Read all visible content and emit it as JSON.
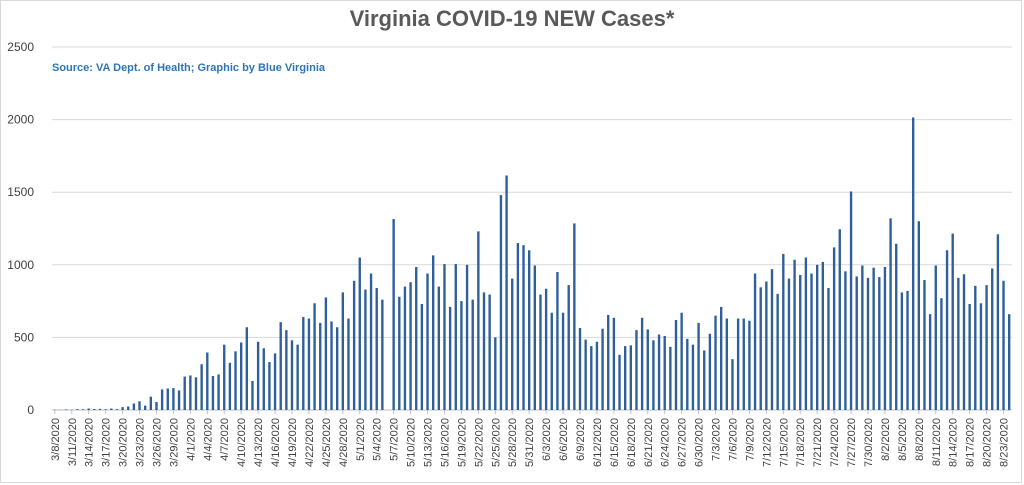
{
  "chart_data": {
    "type": "bar",
    "title": "Virginia COVID-19 NEW Cases*",
    "annotation": "Source: VA Dept. of Health; Graphic by Blue Virginia",
    "start_date": "3/8/2020",
    "tick_labels": [
      "3/8/2020",
      "3/11/2020",
      "3/14/2020",
      "3/17/2020",
      "3/20/2020",
      "3/23/2020",
      "3/26/2020",
      "3/29/2020",
      "4/1/2020",
      "4/4/2020",
      "4/7/2020",
      "4/10/2020",
      "4/13/2020",
      "4/16/2020",
      "4/19/2020",
      "4/22/2020",
      "4/25/2020",
      "4/28/2020",
      "5/1/2020",
      "5/4/2020",
      "5/7/2020",
      "5/10/2020",
      "5/13/2020",
      "5/16/2020",
      "5/19/2020",
      "5/22/2020",
      "5/25/2020",
      "5/28/2020",
      "5/31/2020",
      "6/3/2020",
      "6/6/2020",
      "6/9/2020",
      "6/12/2020",
      "6/15/2020",
      "6/18/2020",
      "6/21/2020",
      "6/24/2020",
      "6/27/2020",
      "6/30/2020",
      "7/3/2020",
      "7/6/2020",
      "7/9/2020",
      "7/12/2020",
      "7/15/2020",
      "7/18/2020",
      "7/21/2020",
      "7/24/2020",
      "7/27/2020",
      "7/30/2020",
      "8/2/2020",
      "8/5/2020",
      "8/8/2020",
      "8/11/2020",
      "8/14/2020",
      "8/17/2020",
      "8/20/2020",
      "8/23/2020"
    ],
    "values": [
      2,
      1,
      4,
      2,
      6,
      5,
      10,
      7,
      8,
      5,
      10,
      6,
      20,
      24,
      45,
      60,
      30,
      92,
      55,
      142,
      148,
      151,
      135,
      230,
      238,
      225,
      315,
      396,
      234,
      245,
      450,
      325,
      404,
      465,
      570,
      200,
      470,
      425,
      330,
      390,
      605,
      550,
      480,
      450,
      640,
      630,
      735,
      600,
      775,
      610,
      570,
      810,
      630,
      890,
      1050,
      830,
      940,
      840,
      760,
      0,
      1315,
      780,
      850,
      880,
      985,
      730,
      940,
      1065,
      850,
      1005,
      710,
      1005,
      750,
      1000,
      760,
      1230,
      810,
      795,
      500,
      1480,
      1615,
      905,
      1150,
      1135,
      1100,
      995,
      795,
      835,
      670,
      950,
      670,
      860,
      1285,
      565,
      485,
      440,
      470,
      560,
      655,
      635,
      380,
      440,
      445,
      550,
      635,
      555,
      480,
      520,
      510,
      435,
      620,
      670,
      490,
      450,
      600,
      410,
      525,
      650,
      710,
      630,
      350,
      630,
      630,
      615,
      940,
      845,
      885,
      970,
      800,
      1075,
      905,
      1035,
      930,
      1050,
      940,
      1000,
      1020,
      840,
      1120,
      1245,
      955,
      1505,
      920,
      995,
      910,
      980,
      915,
      985,
      1320,
      1145,
      810,
      820,
      2015,
      1300,
      895,
      660,
      995,
      770,
      1100,
      1215,
      910,
      935,
      730,
      855,
      735,
      860,
      975,
      1210,
      890,
      660
    ],
    "ylim": [
      0,
      2500
    ],
    "yticks": [
      0,
      500,
      1000,
      1500,
      2000,
      2500
    ],
    "grid": true,
    "colors": {
      "bar": "#2e5f9a",
      "grid": "#d9d9d9",
      "source": "#2e75b6",
      "title": "#595959"
    }
  }
}
